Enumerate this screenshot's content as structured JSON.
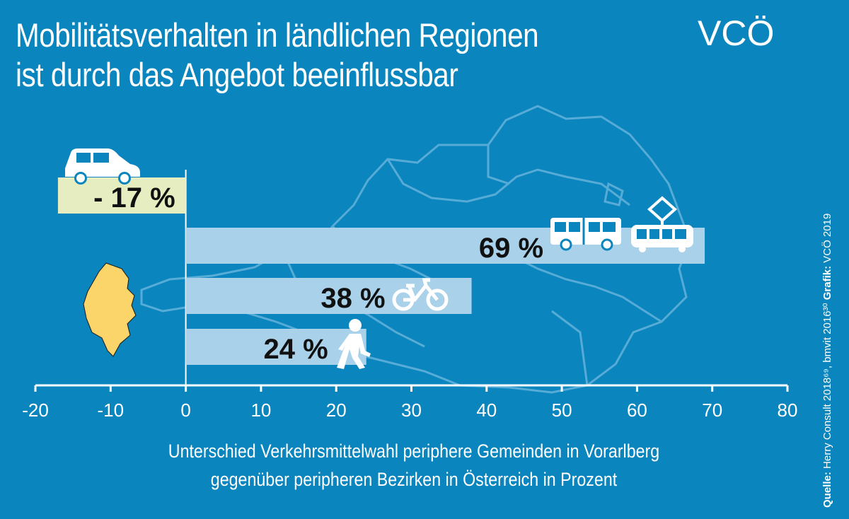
{
  "colors": {
    "background": "#0a85bd",
    "bar_positive": "#a9d1ea",
    "bar_negative": "#e6edc0",
    "vorarlberg": "#fbd46a",
    "outline": "#5fb0da"
  },
  "logo": {
    "text": "VCÖ"
  },
  "source": {
    "quelle_label": "Quelle:",
    "quelle_text": "Herry Consult 2018⁶⁹, bmvit 2016³⁰",
    "grafik_label": "Grafik:",
    "grafik_text": "VCÖ 2019"
  },
  "chart_data": {
    "type": "bar",
    "orientation": "horizontal",
    "title": [
      "Mobilitätsverhalten in ländlichen Regionen",
      "ist durch das Angebot beeinflussbar"
    ],
    "xlabel": [
      "Unterschied Verkehrsmittelwahl periphere Gemeinden in Vorarlberg",
      "gegenüber peripheren Bezirken in Österreich in Prozent"
    ],
    "xlim": [
      -20,
      80
    ],
    "ticks": [
      -20,
      -10,
      0,
      10,
      20,
      30,
      40,
      50,
      60,
      70,
      80
    ],
    "tick_labels": [
      "-20",
      "-10",
      "0",
      "10",
      "20",
      "30",
      "40",
      "50",
      "60",
      "70",
      "80"
    ],
    "categories": [
      "Auto",
      "Öffentlicher Verkehr",
      "Fahrrad",
      "Zu Fuß"
    ],
    "icons": [
      "car-icon",
      "bus-tram-icon",
      "bicycle-icon",
      "pedestrian-icon"
    ],
    "values": [
      -17,
      69,
      38,
      24
    ],
    "data_labels": [
      "- 17 %",
      "69 %",
      "38 %",
      "24 %"
    ]
  }
}
